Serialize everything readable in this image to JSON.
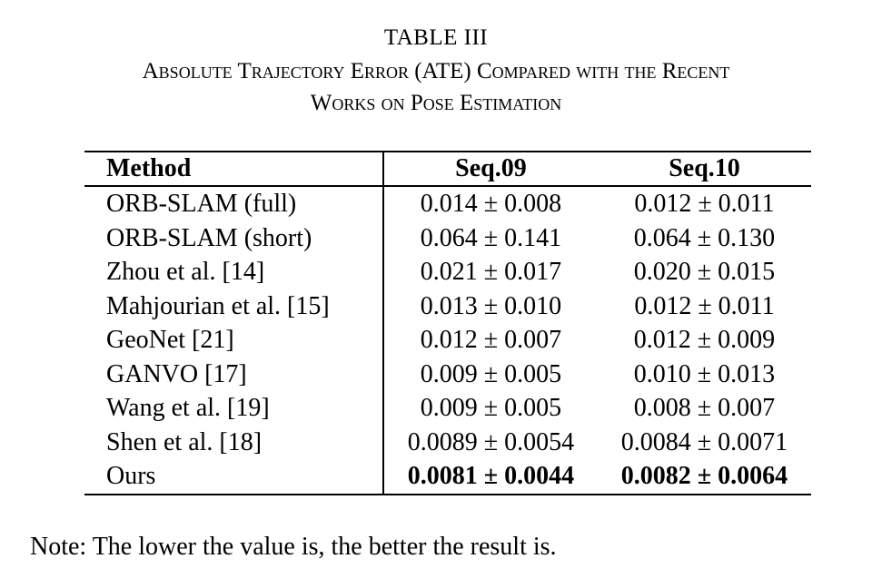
{
  "table_label": "TABLE III",
  "title_line1": "Absolute Trajectory Error (ATE) Compared with the Recent",
  "title_line2": "Works on Pose Estimation",
  "headers": {
    "method": "Method",
    "seq09": "Seq.09",
    "seq10": "Seq.10"
  },
  "rows": [
    {
      "method": "ORB-SLAM (full)",
      "seq09": "0.014 ± 0.008",
      "seq10": "0.012 ± 0.011"
    },
    {
      "method": "ORB-SLAM (short)",
      "seq09": "0.064 ± 0.141",
      "seq10": "0.064 ± 0.130"
    },
    {
      "method": "Zhou et al. [14]",
      "seq09": "0.021 ± 0.017",
      "seq10": "0.020 ± 0.015"
    },
    {
      "method": "Mahjourian et al. [15]",
      "seq09": "0.013 ± 0.010",
      "seq10": "0.012 ± 0.011"
    },
    {
      "method": "GeoNet [21]",
      "seq09": "0.012 ± 0.007",
      "seq10": "0.012 ± 0.009"
    },
    {
      "method": "GANVO [17]",
      "seq09": "0.009 ± 0.005",
      "seq10": "0.010 ± 0.013"
    },
    {
      "method": "Wang et al. [19]",
      "seq09": "0.009 ± 0.005",
      "seq10": "0.008 ± 0.007"
    },
    {
      "method": "Shen et al. [18]",
      "seq09": "0.0089 ± 0.0054",
      "seq10": "0.0084 ± 0.0071"
    },
    {
      "method": "Ours",
      "seq09": "0.0081 ± 0.0044",
      "seq10": "0.0082 ± 0.0064"
    }
  ],
  "note": "Note: The lower the value is, the better the result is."
}
